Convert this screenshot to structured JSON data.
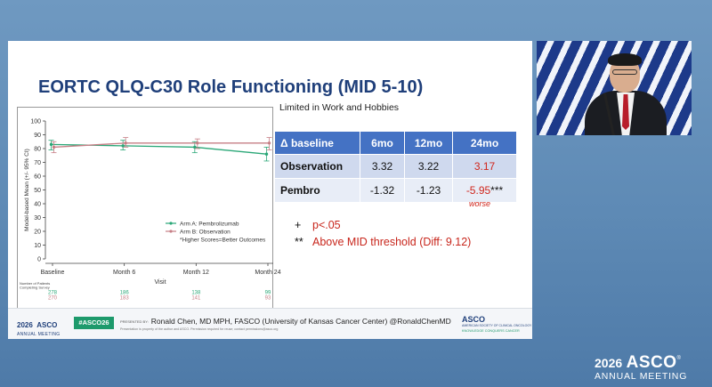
{
  "slide": {
    "title": "EORTC QLQ-C30 Role Functioning (MID 5-10)",
    "subtitle": "Limited in Work and Hobbies"
  },
  "table": {
    "headers": [
      "Δ baseline",
      "6mo",
      "12mo",
      "24mo"
    ],
    "rows": [
      {
        "label": "Observation",
        "values": [
          "3.32",
          "3.22",
          "3.17"
        ]
      },
      {
        "label": "Pembro",
        "values": [
          "-1.32",
          "-1.23",
          "-5.95"
        ],
        "suffix": "***"
      }
    ],
    "annotation": "worse"
  },
  "notes": [
    {
      "symbol": "+",
      "text": "p<.05"
    },
    {
      "symbol": "**",
      "text": "Above MID threshold (Diff: 9.12)"
    }
  ],
  "chart_data": {
    "type": "line",
    "ylabel": "Model-based Mean (+/- 95% CI)",
    "xlabel": "Visit",
    "categories": [
      "Baseline",
      "Month 6",
      "Month 12",
      "Month 24"
    ],
    "ylim": [
      0,
      100
    ],
    "yticks": [
      "0",
      "10",
      "20",
      "30",
      "40",
      "50",
      "60",
      "70",
      "80",
      "90",
      "100"
    ],
    "series": [
      {
        "name": "Arm A: Pembrolizumab",
        "color": "#2aa777",
        "values": [
          83,
          82,
          81,
          76
        ],
        "ci": [
          [
            79,
            86
          ],
          [
            79,
            86
          ],
          [
            77,
            85
          ],
          [
            71,
            81
          ]
        ]
      },
      {
        "name": "Arm B: Observation",
        "color": "#c67f86",
        "values": [
          81,
          84,
          84,
          84
        ],
        "ci": [
          [
            77,
            85
          ],
          [
            81,
            88
          ],
          [
            80,
            87
          ],
          [
            79,
            88
          ]
        ]
      }
    ],
    "legend_note": "*Higher Scores=Better Outcomes",
    "legend_position": "bottom-right",
    "patients_label": [
      "Number of Patients",
      "Completing Survey"
    ],
    "patients": {
      "armA": [
        "278",
        "186",
        "138",
        "99"
      ],
      "armB": [
        "270",
        "183",
        "141",
        "93"
      ]
    }
  },
  "footer": {
    "logo": {
      "year": "2026",
      "name": "ASCO",
      "meeting": "ANNUAL MEETING"
    },
    "hashtag": "#ASCO26",
    "presented_by_label": "PRESENTED BY:",
    "presenter": "Ronald Chen, MD MPH, FASCO (University of Kansas Cancer Center) @RonaldChenMD",
    "disclaimer": "Presentation is property of the author and ASCO. Permission required for reuse; contact permissions@asco.org",
    "brand": {
      "name": "ASCO",
      "sub": "AMERICAN SOCIETY OF CLINICAL ONCOLOGY",
      "tagline": "KNOWLEDGE CONQUERS CANCER"
    }
  },
  "event_logo": {
    "year": "2026",
    "name": "ASCO",
    "reg": "®",
    "meeting": "ANNUAL MEETING"
  },
  "colors": {
    "title_blue": "#1f3f7a",
    "table_header": "#4472c4",
    "accent_red": "#d0261c",
    "stage_blue": "#5e8ab5"
  }
}
